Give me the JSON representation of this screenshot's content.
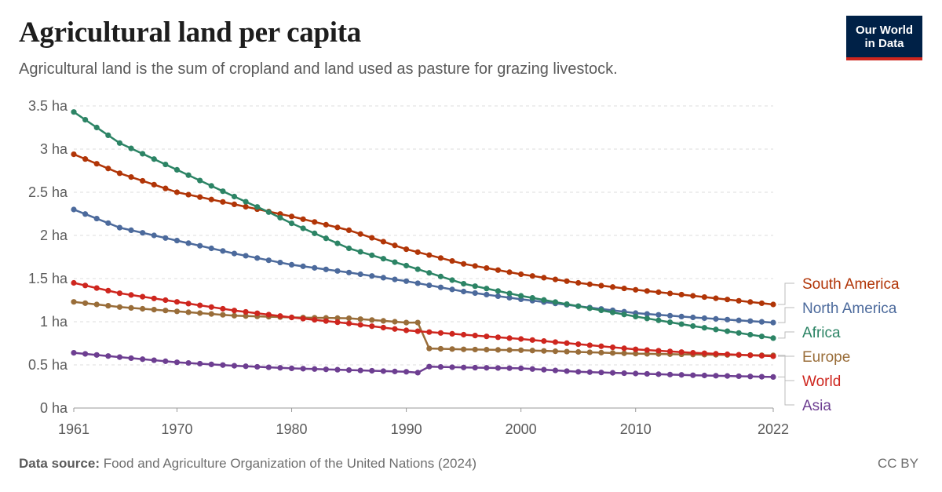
{
  "header": {
    "title": "Agricultural land per capita",
    "subtitle": "Agricultural land is the sum of cropland and land used as pasture for grazing livestock.",
    "logo_line1": "Our World",
    "logo_line2": "in Data"
  },
  "footer": {
    "source_label": "Data source:",
    "source_text": "Food and Agriculture Organization of the United Nations (2024)",
    "license": "CC BY"
  },
  "chart_data": {
    "type": "line",
    "title": "Agricultural land per capita",
    "xlabel": "",
    "ylabel": "",
    "x_range": [
      1961,
      2022
    ],
    "ylim": [
      0,
      3.5
    ],
    "y_ticks": [
      0,
      0.5,
      1,
      1.5,
      2,
      2.5,
      3,
      3.5
    ],
    "y_tick_labels": [
      "0 ha",
      "0.5 ha",
      "1 ha",
      "1.5 ha",
      "2 ha",
      "2.5 ha",
      "3 ha",
      "3.5 ha"
    ],
    "x_ticks": [
      1961,
      1970,
      1980,
      1990,
      2000,
      2010,
      2022
    ],
    "x_tick_labels": [
      "1961",
      "1970",
      "1980",
      "1990",
      "2000",
      "2010",
      "2022"
    ],
    "grid": "horizontal-dashed",
    "legend": "inline-right",
    "series": [
      {
        "name": "South America",
        "color": "#b13507",
        "points": [
          [
            1961,
            2.94
          ],
          [
            1965,
            2.72
          ],
          [
            1970,
            2.5
          ],
          [
            1975,
            2.36
          ],
          [
            1980,
            2.22
          ],
          [
            1985,
            2.06
          ],
          [
            1990,
            1.84
          ],
          [
            1995,
            1.67
          ],
          [
            2000,
            1.55
          ],
          [
            2005,
            1.45
          ],
          [
            2010,
            1.37
          ],
          [
            2015,
            1.3
          ],
          [
            2022,
            1.2
          ]
        ]
      },
      {
        "name": "North America",
        "color": "#4c6a9c",
        "points": [
          [
            1961,
            2.3
          ],
          [
            1965,
            2.09
          ],
          [
            1970,
            1.94
          ],
          [
            1975,
            1.79
          ],
          [
            1980,
            1.66
          ],
          [
            1985,
            1.57
          ],
          [
            1990,
            1.47
          ],
          [
            1995,
            1.35
          ],
          [
            2000,
            1.26
          ],
          [
            2005,
            1.18
          ],
          [
            2010,
            1.1
          ],
          [
            2015,
            1.05
          ],
          [
            2022,
            0.99
          ]
        ]
      },
      {
        "name": "Africa",
        "color": "#2c8465",
        "points": [
          [
            1961,
            3.43
          ],
          [
            1965,
            3.07
          ],
          [
            1970,
            2.76
          ],
          [
            1975,
            2.45
          ],
          [
            1978,
            2.27
          ],
          [
            1980,
            2.14
          ],
          [
            1985,
            1.85
          ],
          [
            1990,
            1.65
          ],
          [
            1995,
            1.44
          ],
          [
            2000,
            1.3
          ],
          [
            2005,
            1.18
          ],
          [
            2010,
            1.06
          ],
          [
            2015,
            0.95
          ],
          [
            2022,
            0.81
          ]
        ]
      },
      {
        "name": "Europe",
        "color": "#996d39",
        "points": [
          [
            1961,
            1.23
          ],
          [
            1965,
            1.17
          ],
          [
            1970,
            1.12
          ],
          [
            1975,
            1.07
          ],
          [
            1980,
            1.05
          ],
          [
            1985,
            1.04
          ],
          [
            1990,
            0.99
          ],
          [
            1991,
            0.99
          ],
          [
            1992,
            0.69
          ],
          [
            1995,
            0.68
          ],
          [
            2000,
            0.67
          ],
          [
            2005,
            0.65
          ],
          [
            2010,
            0.63
          ],
          [
            2015,
            0.62
          ],
          [
            2022,
            0.61
          ]
        ]
      },
      {
        "name": "World",
        "color": "#ce261e",
        "points": [
          [
            1961,
            1.45
          ],
          [
            1965,
            1.33
          ],
          [
            1970,
            1.23
          ],
          [
            1975,
            1.13
          ],
          [
            1980,
            1.05
          ],
          [
            1985,
            0.98
          ],
          [
            1990,
            0.9
          ],
          [
            1995,
            0.85
          ],
          [
            2000,
            0.8
          ],
          [
            2005,
            0.74
          ],
          [
            2010,
            0.68
          ],
          [
            2015,
            0.64
          ],
          [
            2022,
            0.6
          ]
        ]
      },
      {
        "name": "Asia",
        "color": "#6d3e91",
        "points": [
          [
            1961,
            0.64
          ],
          [
            1965,
            0.59
          ],
          [
            1970,
            0.53
          ],
          [
            1975,
            0.49
          ],
          [
            1980,
            0.46
          ],
          [
            1985,
            0.44
          ],
          [
            1990,
            0.42
          ],
          [
            1991,
            0.41
          ],
          [
            1992,
            0.48
          ],
          [
            1995,
            0.47
          ],
          [
            2000,
            0.46
          ],
          [
            2005,
            0.42
          ],
          [
            2010,
            0.4
          ],
          [
            2015,
            0.38
          ],
          [
            2022,
            0.36
          ]
        ]
      }
    ]
  }
}
